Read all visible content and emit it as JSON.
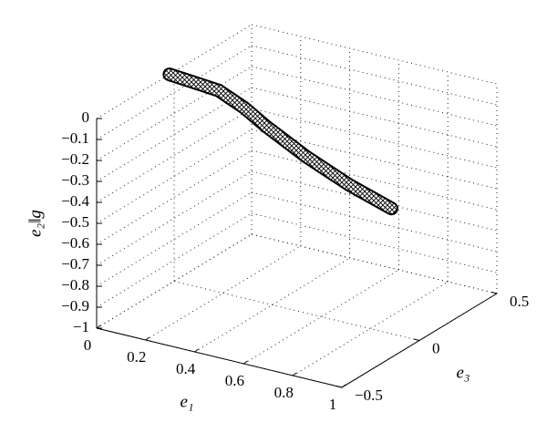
{
  "chart_data": {
    "type": "line3d",
    "x_label": "e₁",
    "y_label": "e₃",
    "z_label": "e₂‖g",
    "xlim": [
      0,
      1
    ],
    "xticks": [
      0,
      0.2,
      0.4,
      0.6,
      0.8,
      1
    ],
    "ylim": [
      -0.5,
      0.5
    ],
    "yticks": [
      {
        "value": -0.5,
        "label": "−0.5"
      },
      0,
      0.5
    ],
    "zlim": [
      -1,
      0
    ],
    "zticks": [
      {
        "value": -1,
        "label": "−1"
      },
      {
        "value": -0.9,
        "label": "−0.9"
      },
      {
        "value": -0.8,
        "label": "−0.8"
      },
      {
        "value": -0.7,
        "label": "−0.7"
      },
      {
        "value": -0.6,
        "label": "−0.6"
      },
      {
        "value": -0.5,
        "label": "−0.5"
      },
      {
        "value": -0.4,
        "label": "−0.4"
      },
      {
        "value": -0.3,
        "label": "−0.3"
      },
      {
        "value": -0.2,
        "label": "−0.2"
      },
      {
        "value": -0.1,
        "label": "−0.1"
      },
      0
    ],
    "grid": true,
    "color": "#000000",
    "x": [
      0,
      0.1,
      0.2,
      0.3,
      0.4,
      0.5,
      0.6,
      0.7,
      0.8,
      0.9,
      1
    ],
    "y": [
      -0.03,
      -0.03,
      -0.03,
      -0.02,
      -0.04,
      -0.07,
      -0.1,
      -0.12,
      -0.14,
      -0.16,
      -0.18
    ],
    "z": [
      0,
      -0.01,
      -0.02,
      -0.08,
      -0.13,
      -0.16,
      -0.19,
      -0.22,
      -0.25,
      -0.27,
      -0.29
    ]
  }
}
